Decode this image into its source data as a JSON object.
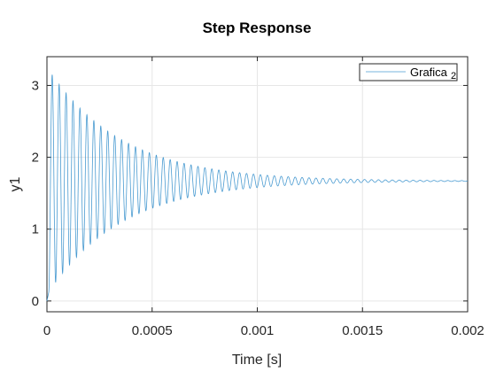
{
  "chart_data": {
    "type": "line",
    "title": "Step Response",
    "xlabel": "Time [s]",
    "ylabel": "y1",
    "xlim": [
      0,
      0.002
    ],
    "ylim": [
      -0.15,
      3.4
    ],
    "xticks": [
      0,
      0.0005,
      0.001,
      0.0015,
      0.002
    ],
    "xtick_labels": [
      "0",
      "0.0005",
      "0.001",
      "0.0015",
      "0.002"
    ],
    "yticks": [
      0,
      1,
      2,
      3
    ],
    "ytick_labels": [
      "0",
      "1",
      "2",
      "3"
    ],
    "grid": true,
    "legend": {
      "position": "top-right",
      "entries": [
        "Grafica",
        "2"
      ]
    },
    "series": [
      {
        "name": "Grafica",
        "color": "#4a9bd1",
        "model": {
          "steady_state": 1.67,
          "first_peak": 3.22,
          "first_peak_time": 2.5e-05,
          "first_trough": 0.2,
          "oscillation_period": 3.3e-05,
          "decay_time_constant": 0.00035
        }
      }
    ]
  }
}
